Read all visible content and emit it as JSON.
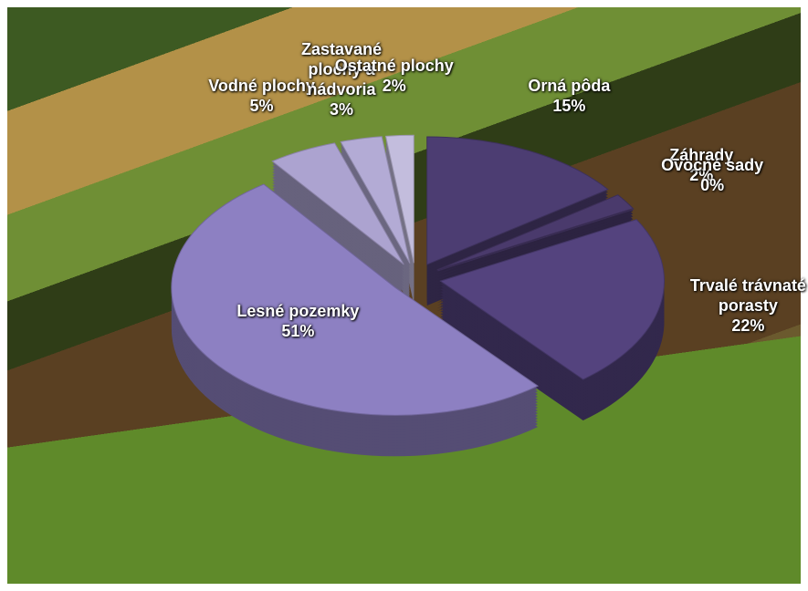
{
  "chart_data": {
    "type": "pie",
    "categories": [
      "Orná pôda",
      "Záhrady",
      "Ovocné sady",
      "Trvalé trávnaté porasty",
      "Lesné pozemky",
      "Vodné plochy",
      "Zastavané plochy a nádvoria",
      "Ostatné plochy"
    ],
    "values": [
      15,
      2,
      0,
      22,
      51,
      5,
      3,
      2
    ],
    "value_labels": [
      "15%",
      "2%",
      "0%",
      "22%",
      "51%",
      "5%",
      "3%",
      "2%"
    ],
    "colors": [
      "#4c3d72",
      "#4a3a6c",
      "#4a3a6c",
      "#54437e",
      "#8d80c2",
      "#aca3d0",
      "#b3abd5",
      "#c3bddd"
    ]
  }
}
